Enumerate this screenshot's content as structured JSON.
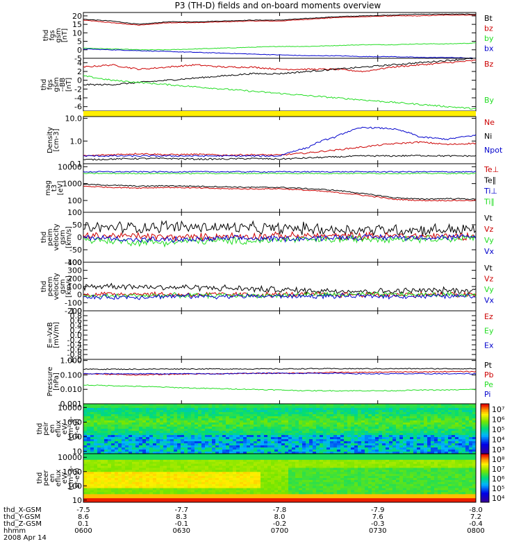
{
  "title": "P3 (TH-D) fields and on-board moments overview",
  "colors": {
    "black": "#000000",
    "red": "#cc0000",
    "green": "#22dd22",
    "blue": "#0000cc",
    "yellow": "#ffee00"
  },
  "chart_data": [
    {
      "id": "fgs_gsm",
      "type": "line",
      "ylabel": [
        "thd",
        "fgs",
        "gsm",
        "[nT]"
      ],
      "ylim": [
        -5,
        22
      ],
      "yticks": [
        20,
        15,
        10,
        5,
        0,
        -5
      ],
      "series": [
        {
          "name": "Bt",
          "color": "red",
          "values": [
            17.5,
            16,
            14.5,
            16,
            16,
            16.5,
            17,
            17,
            18,
            19,
            19.5,
            20,
            20,
            20.5,
            20.5
          ]
        },
        {
          "name": "bz",
          "color": "black",
          "values": [
            18,
            17,
            15,
            16.5,
            16.5,
            17,
            17.5,
            17.5,
            18.5,
            19.5,
            20,
            20.5,
            21,
            21,
            21
          ]
        },
        {
          "name": "by",
          "color": "green",
          "values": [
            1,
            0.5,
            0,
            0,
            0.5,
            1,
            1.5,
            2,
            2,
            2.5,
            3,
            3,
            3.5,
            3.5,
            4
          ]
        },
        {
          "name": "bx",
          "color": "blue",
          "values": [
            0.5,
            0,
            -0.5,
            -1,
            -1.5,
            -2,
            -2.5,
            -3,
            -3.5,
            -3.5,
            -4,
            -4,
            -4.5,
            -4.5,
            -5
          ]
        }
      ],
      "right_labels": [
        "Bt",
        "bz",
        "by",
        "bx"
      ]
    },
    {
      "id": "fgs_dsl",
      "type": "line",
      "ylabel": [
        "thd",
        "fgs",
        "gsm",
        "--BB",
        "[nT]"
      ],
      "ylim": [
        -7,
        5
      ],
      "yticks": [
        4,
        2,
        0,
        -2,
        -4,
        -6
      ],
      "series": [
        {
          "name": "Bz",
          "color": "red",
          "values": [
            3,
            3.5,
            2.5,
            3,
            3.5,
            3,
            3,
            2.5,
            2.5,
            2.5,
            2,
            3,
            3.5,
            4,
            4.5
          ]
        },
        {
          "name": "Bx",
          "color": "black",
          "values": [
            -1,
            -1,
            -0.5,
            0,
            0.5,
            1,
            1.5,
            1.5,
            2,
            2.5,
            3,
            3.5,
            4,
            4.5,
            5
          ]
        },
        {
          "name": "By",
          "color": "green",
          "values": [
            1,
            0,
            -0.5,
            -1,
            -1.5,
            -2,
            -2.5,
            -3,
            -3.5,
            -4,
            -4.5,
            -5,
            -5.5,
            -6,
            -6.5
          ]
        }
      ],
      "right_labels": [
        "Bz",
        "By"
      ]
    },
    {
      "id": "density",
      "type": "line",
      "log": true,
      "ylabel": [
        "Density",
        "[cm-3]"
      ],
      "ylim": [
        0.1,
        12
      ],
      "yticks": [
        10.0,
        1.0,
        0.1
      ],
      "series": [
        {
          "name": "Ne",
          "color": "red",
          "values": [
            0.22,
            0.25,
            0.28,
            0.25,
            0.26,
            0.24,
            0.25,
            0.24,
            0.3,
            0.4,
            0.55,
            0.75,
            0.9,
            0.7,
            0.8
          ]
        },
        {
          "name": "Ni",
          "color": "black",
          "values": [
            0.15,
            0.16,
            0.17,
            0.17,
            0.16,
            0.16,
            0.17,
            0.16,
            0.18,
            0.2,
            0.22,
            0.22,
            0.23,
            0.22,
            0.22
          ]
        },
        {
          "name": "Npot",
          "color": "blue",
          "values": [
            0.22,
            0.22,
            0.22,
            0.22,
            0.22,
            0.22,
            0.22,
            0.22,
            0.5,
            1.5,
            4.0,
            3.5,
            1.5,
            1.2,
            1.8
          ]
        }
      ],
      "right_labels": [
        "Ne",
        "Ni",
        "Npot"
      ]
    },
    {
      "id": "temperature",
      "type": "line",
      "log": true,
      "ylabel": [
        "mag",
        "t3",
        "[eV]"
      ],
      "ylim": [
        20,
        15000
      ],
      "yticks": [
        10000,
        1000,
        100
      ],
      "series": [
        {
          "name": "Te⊥",
          "color": "red",
          "values": [
            700,
            600,
            550,
            600,
            550,
            500,
            480,
            500,
            400,
            300,
            200,
            120,
            100,
            100,
            100
          ]
        },
        {
          "name": "Te∥",
          "color": "black",
          "values": [
            900,
            800,
            700,
            750,
            700,
            650,
            600,
            600,
            500,
            400,
            250,
            150,
            120,
            130,
            120
          ]
        },
        {
          "name": "Ti⊥",
          "color": "blue",
          "values": [
            5000,
            5000,
            5000,
            5000,
            5000,
            5000,
            5000,
            5000,
            5000,
            5000,
            5000,
            5000,
            5000,
            5000,
            5000
          ]
        },
        {
          "name": "Ti∥",
          "color": "green",
          "values": [
            4000,
            4000,
            4000,
            4000,
            4000,
            4000,
            4000,
            4000,
            4000,
            4000,
            4000,
            4000,
            4000,
            4000,
            4000
          ]
        }
      ],
      "right_labels": [
        "Te⊥",
        "Te∥",
        "Ti⊥",
        "Ti∥"
      ]
    },
    {
      "id": "peem_velocity",
      "type": "line",
      "ylabel": [
        "thd",
        "peim",
        "velocity",
        "gsm",
        "[km/s]"
      ],
      "ylim": [
        -100,
        100
      ],
      "yticks": [
        100,
        50,
        0,
        -50,
        -100
      ],
      "series": [
        {
          "name": "Vt",
          "color": "black",
          "noise": 25,
          "values": [
            35,
            40,
            40,
            45,
            40,
            40,
            35,
            35,
            35,
            30,
            30,
            30,
            30,
            30,
            30
          ]
        },
        {
          "name": "Vz",
          "color": "red",
          "noise": 15,
          "values": [
            5,
            5,
            5,
            0,
            0,
            5,
            5,
            5,
            5,
            5,
            5,
            5,
            5,
            5,
            5
          ]
        },
        {
          "name": "Vy",
          "color": "green",
          "noise": 15,
          "values": [
            -10,
            -15,
            -20,
            -20,
            -15,
            -15,
            -15,
            -10,
            -10,
            -10,
            -5,
            -5,
            -5,
            -5,
            -5
          ]
        },
        {
          "name": "Vx",
          "color": "blue",
          "noise": 12,
          "values": [
            0,
            -5,
            -10,
            -10,
            -10,
            -5,
            -5,
            -5,
            -5,
            0,
            0,
            0,
            0,
            0,
            0
          ]
        }
      ],
      "right_labels": [
        "Vt",
        "Vz",
        "Vy",
        "Vx"
      ]
    },
    {
      "id": "peem_velocity2",
      "type": "line",
      "ylabel": [
        "thd",
        "peem",
        "velocity",
        "gsm",
        "[km/s]"
      ],
      "ylim": [
        -200,
        400
      ],
      "yticks": [
        400,
        300,
        200,
        100,
        0,
        -100,
        -200
      ],
      "series": [
        {
          "name": "Vt",
          "color": "black",
          "noise": 40,
          "values": [
            100,
            110,
            100,
            90,
            90,
            80,
            70,
            60,
            50,
            50,
            40,
            40,
            50,
            50,
            50
          ]
        },
        {
          "name": "Vz",
          "color": "red",
          "noise": 35,
          "values": [
            0,
            10,
            10,
            0,
            0,
            0,
            0,
            0,
            0,
            0,
            0,
            0,
            0,
            0,
            0
          ]
        },
        {
          "name": "Vy",
          "color": "green",
          "noise": 30,
          "values": [
            -20,
            -20,
            -10,
            -10,
            -10,
            -10,
            -10,
            -10,
            0,
            0,
            0,
            0,
            0,
            0,
            0
          ]
        },
        {
          "name": "Vx",
          "color": "blue",
          "noise": 30,
          "values": [
            -40,
            -30,
            -30,
            -20,
            -20,
            -20,
            -20,
            -20,
            -20,
            -20,
            -20,
            -20,
            -20,
            -20,
            -20
          ]
        }
      ],
      "right_labels": [
        "Vt",
        "Vz",
        "Vy",
        "Vx"
      ]
    },
    {
      "id": "efield",
      "type": "line",
      "ylabel": [
        "E=-VxB",
        "[mV/m]"
      ],
      "ylim": [
        -1,
        1
      ],
      "yticks": [
        1.0,
        0.8,
        0.6,
        0.4,
        0.2,
        0.0,
        -0.2,
        -0.4,
        -0.6,
        -0.8,
        -1.0
      ],
      "series": [],
      "right_labels": [
        "Ez",
        "Ey",
        "Ex"
      ]
    },
    {
      "id": "pressure",
      "type": "line",
      "log": true,
      "ylabel": [
        "Pressure",
        "[nPa]"
      ],
      "ylim": [
        0.001,
        1.2
      ],
      "yticks": [
        1.0,
        0.1,
        0.01,
        0.001
      ],
      "series": [
        {
          "name": "Pt",
          "color": "black",
          "values": [
            0.25,
            0.25,
            0.25,
            0.26,
            0.26,
            0.26,
            0.26,
            0.26,
            0.27,
            0.27,
            0.27,
            0.27,
            0.27,
            0.27,
            0.27
          ]
        },
        {
          "name": "Pb",
          "color": "red",
          "values": [
            0.12,
            0.11,
            0.1,
            0.11,
            0.12,
            0.12,
            0.13,
            0.13,
            0.14,
            0.15,
            0.15,
            0.16,
            0.16,
            0.17,
            0.17
          ]
        },
        {
          "name": "Pe",
          "color": "green",
          "values": [
            0.02,
            0.018,
            0.016,
            0.014,
            0.012,
            0.011,
            0.01,
            0.009,
            0.008,
            0.008,
            0.008,
            0.008,
            0.009,
            0.009,
            0.01
          ]
        },
        {
          "name": "Pi",
          "color": "blue",
          "values": [
            0.12,
            0.12,
            0.12,
            0.12,
            0.12,
            0.12,
            0.13,
            0.13,
            0.13,
            0.13,
            0.12,
            0.12,
            0.12,
            0.12,
            0.12
          ]
        }
      ],
      "right_labels": [
        "Pt",
        "Pb",
        "Pe",
        "Pi"
      ]
    },
    {
      "id": "ion_spec",
      "type": "heatmap",
      "ylabel": [
        "thd",
        "peir",
        "en",
        "eflux",
        "eV/",
        "(cm²-s-",
        "sr-eV)"
      ],
      "yticks": [
        10000,
        1000,
        100,
        10
      ],
      "cbar_ticks": [
        "10⁷",
        "10⁶",
        "10⁵",
        "10⁴",
        "10³"
      ]
    },
    {
      "id": "elec_spec",
      "type": "heatmap",
      "ylabel": [
        "thd",
        "peer",
        "en",
        "eflux",
        "eV/",
        "(cm²-s-",
        "sr-eV)"
      ],
      "yticks": [
        10000,
        1000,
        100,
        10
      ],
      "cbar_ticks": [
        "10⁸",
        "10⁷",
        "10⁶",
        "10⁵",
        "10⁴"
      ]
    }
  ],
  "xaxis": {
    "rows": [
      {
        "label": "thd_X-GSM",
        "values": [
          "-7.5",
          "-7.7",
          "-7.8",
          "-7.9",
          "-8.0"
        ]
      },
      {
        "label": "thd_Y-GSM",
        "values": [
          "8.6",
          "8.3",
          "8.0",
          "7.6",
          "7.2"
        ]
      },
      {
        "label": "thd_Z-GSM",
        "values": [
          "0.1",
          "-0.1",
          "-0.2",
          "-0.3",
          "-0.4"
        ]
      },
      {
        "label": "hhmm",
        "values": [
          "0600",
          "0630",
          "0700",
          "0730",
          "0800"
        ]
      }
    ],
    "date": "2008 Apr 14"
  }
}
